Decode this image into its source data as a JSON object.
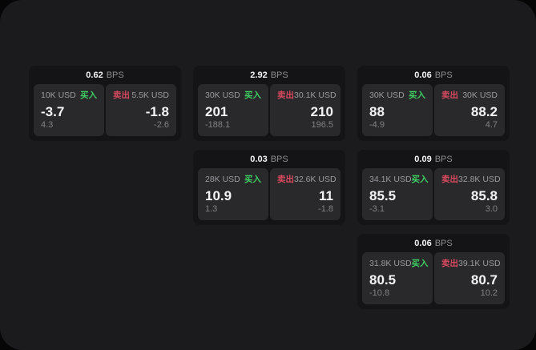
{
  "labels": {
    "bps_unit": "BPS",
    "buy_side": "买入",
    "sell_side": "卖出"
  },
  "colors": {
    "buy": "#3ecf63",
    "sell": "#d8495f",
    "window_bg": "#1b1b1d",
    "card_bg": "#141416",
    "panel_bg": "#29292b"
  },
  "cards": [
    {
      "bps": "0.62",
      "buy": {
        "amount": "10K USD",
        "price": "-3.7",
        "sub_value": "4.3"
      },
      "sell": {
        "amount": "5.5K USD",
        "price": "-1.8",
        "sub_value": "-2.6"
      }
    },
    {
      "bps": "2.92",
      "buy": {
        "amount": "30K USD",
        "price": "201",
        "sub_value": "-188.1"
      },
      "sell": {
        "amount": "30.1K USD",
        "price": "210",
        "sub_value": "196.5"
      }
    },
    {
      "bps": "0.06",
      "buy": {
        "amount": "30K USD",
        "price": "88",
        "sub_value": "-4.9"
      },
      "sell": {
        "amount": "30K USD",
        "price": "88.2",
        "sub_value": "4.7"
      }
    },
    {
      "bps": "0.03",
      "buy": {
        "amount": "28K USD",
        "price": "10.9",
        "sub_value": "1.3"
      },
      "sell": {
        "amount": "32.6K USD",
        "price": "11",
        "sub_value": "-1.8"
      }
    },
    {
      "bps": "0.09",
      "buy": {
        "amount": "34.1K USD",
        "price": "85.5",
        "sub_value": "-3.1"
      },
      "sell": {
        "amount": "32.8K USD",
        "price": "85.8",
        "sub_value": "3.0"
      }
    },
    {
      "bps": "0.06",
      "buy": {
        "amount": "31.8K USD",
        "price": "80.5",
        "sub_value": "-10.8"
      },
      "sell": {
        "amount": "39.1K USD",
        "price": "80.7",
        "sub_value": "10.2"
      }
    }
  ]
}
